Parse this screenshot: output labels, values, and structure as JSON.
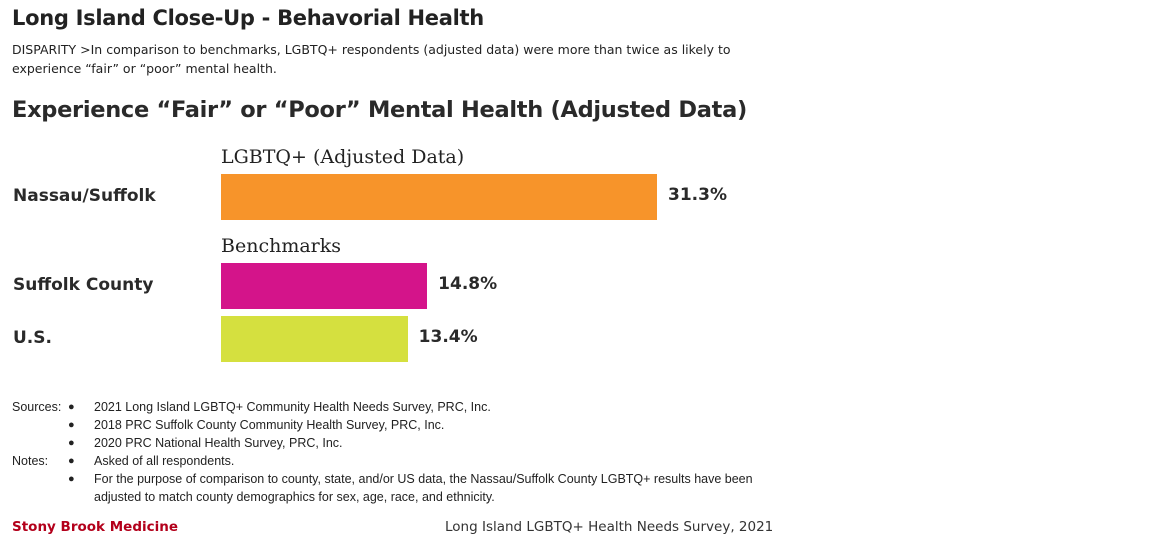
{
  "header": {
    "title": "Long Island Close-Up - Behavorial Health",
    "disparity": "DISPARITY >In comparison to benchmarks, LGBTQ+ respondents (adjusted data) were more than twice as likely to experience “fair” or “poor” mental health."
  },
  "chart_data": {
    "type": "bar",
    "orientation": "horizontal",
    "title": "Experience “Fair” or “Poor” Mental Health (Adjusted Data)",
    "groups": [
      {
        "label": "LGBTQ+ (Adjusted Data)",
        "bars": [
          {
            "category": "Nassau/Suffolk",
            "value": 31.3,
            "value_label": "31.3%",
            "color": "#f7942a"
          }
        ]
      },
      {
        "label": "Benchmarks",
        "bars": [
          {
            "category": "Suffolk County",
            "value": 14.8,
            "value_label": "14.8%",
            "color": "#d4148a"
          },
          {
            "category": "U.S.",
            "value": 13.4,
            "value_label": "13.4%",
            "color": "#d5e03f"
          }
        ]
      }
    ],
    "xlabel": "",
    "ylabel": "",
    "grid": false
  },
  "notes": {
    "sources_label": "Sources:",
    "sources": [
      "2021 Long Island LGBTQ+ Community Health Needs Survey, PRC, Inc.",
      "2018 PRC Suffolk County Community Health Survey, PRC, Inc.",
      "2020 PRC National Health Survey, PRC, Inc."
    ],
    "notes_label": "Notes:",
    "notes_items": [
      "Asked of all respondents.",
      "For the purpose of comparison to county, state, and/or US data, the Nassau/Suffolk County LGBTQ+ results have been",
      "adjusted to match county demographics for sex, age, race, and ethnicity."
    ],
    "bullet": "●"
  },
  "footer": {
    "brand": "Stony Brook Medicine",
    "survey": "Long Island LGBTQ+ Health Needs Survey, 2021"
  }
}
